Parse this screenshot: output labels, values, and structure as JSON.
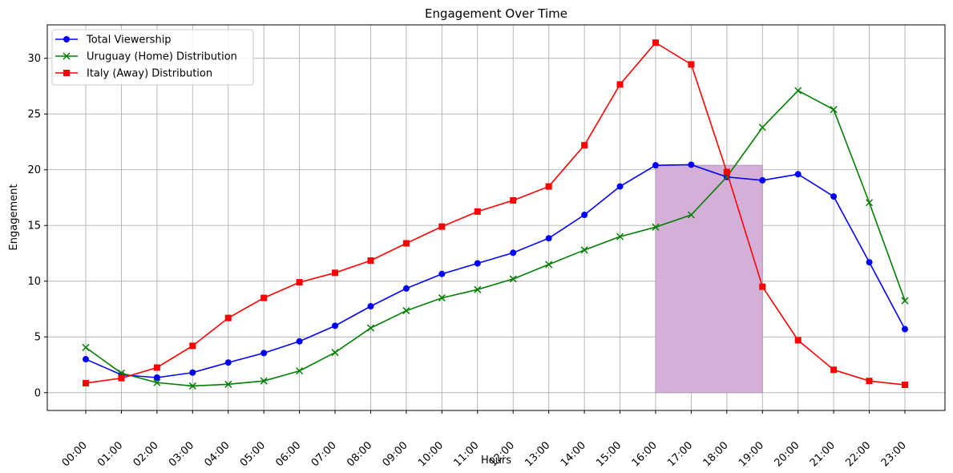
{
  "chart_data": {
    "type": "line",
    "title": "Engagement Over Time",
    "xlabel": "Hours",
    "ylabel": "Engagement",
    "categories": [
      "00:00",
      "01:00",
      "02:00",
      "03:00",
      "04:00",
      "05:00",
      "06:00",
      "07:00",
      "08:00",
      "09:00",
      "10:00",
      "11:00",
      "12:00",
      "13:00",
      "14:00",
      "15:00",
      "16:00",
      "17:00",
      "18:00",
      "19:00",
      "20:00",
      "21:00",
      "22:00",
      "23:00"
    ],
    "ylim": [
      -1.6,
      33
    ],
    "yticks": [
      0,
      5,
      10,
      15,
      20,
      25,
      30
    ],
    "grid": true,
    "legend_position": "top-left",
    "series": [
      {
        "name": "Total Viewership",
        "color": "#0000ff",
        "marker": "circle",
        "values": [
          3.0,
          1.6,
          1.35,
          1.8,
          2.7,
          3.55,
          4.6,
          6.0,
          7.75,
          9.35,
          10.65,
          11.6,
          12.55,
          13.85,
          15.95,
          18.5,
          20.4,
          20.45,
          19.35,
          19.05,
          19.6,
          17.6,
          11.7,
          5.7
        ]
      },
      {
        "name": "Uruguay (Home) Distribution",
        "color": "#008000",
        "marker": "x",
        "values": [
          4.05,
          1.75,
          0.9,
          0.6,
          0.75,
          1.05,
          1.95,
          3.6,
          5.8,
          7.35,
          8.5,
          9.25,
          10.2,
          11.5,
          12.8,
          14.0,
          14.85,
          15.95,
          19.35,
          23.8,
          27.1,
          25.4,
          17.05,
          8.25
        ]
      },
      {
        "name": "Italy (Away) Distribution",
        "color": "#ff0000",
        "marker": "square",
        "values": [
          0.85,
          1.3,
          2.25,
          4.2,
          6.7,
          8.5,
          9.9,
          10.75,
          11.85,
          13.4,
          14.9,
          16.25,
          17.25,
          18.5,
          22.2,
          27.65,
          31.4,
          29.45,
          19.8,
          9.5,
          4.7,
          2.05,
          1.05,
          0.7
        ]
      }
    ],
    "highlight": {
      "from": "16:00",
      "to": "19:00",
      "ymin": 0,
      "ymax": 20.4,
      "color": "#d4afd8"
    }
  }
}
